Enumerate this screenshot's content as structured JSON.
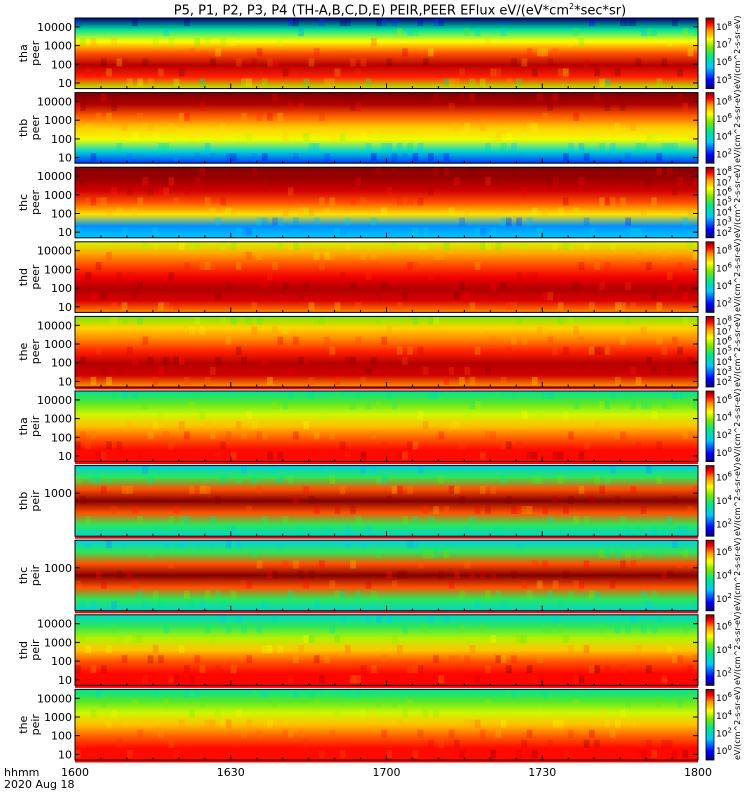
{
  "title": {
    "prefix": "P5, P1, P2, P3, P4 (TH-A,B,C,D,E) PEIR,PEER EFlux eV/(eV*cm",
    "sup": "2",
    "suffix": "*sec*sr)"
  },
  "footer": {
    "time_label": "hhmm",
    "date_label": "2020 Aug 18"
  },
  "colors": {
    "low": "#00007f",
    "high": "#7f0000",
    "gap": "#ff0000"
  },
  "chart_data": {
    "type": "heatmap",
    "title": "P5, P1, P2, P3, P4 (TH-A,B,C,D,E) PEIR,PEER EFlux eV/(eV*cm2*sec*sr)",
    "x": {
      "label": "hhmm",
      "ticks": [
        "1600",
        "1630",
        "1700",
        "1730",
        "1800"
      ],
      "range": [
        "16:00",
        "18:00"
      ]
    },
    "y_scale": "log",
    "colorbar_scale": "log",
    "panels": [
      {
        "probe": "tha",
        "instrument": "peer",
        "yticks": [
          "10",
          "100",
          "1000",
          "10000"
        ],
        "yrange": [
          5,
          30000
        ],
        "cbar_ticks": [
          "10^5",
          "10^6",
          "10^7",
          "10^8"
        ],
        "cbar_range": [
          5,
          8
        ],
        "cbar_label": "eV/(cm^2-s-sr-eV)",
        "profile": [
          5.0,
          6.3,
          7.1,
          7.6,
          7.9,
          7.7,
          6.9
        ]
      },
      {
        "probe": "thb",
        "instrument": "peer",
        "yticks": [
          "10",
          "100",
          "1000",
          "10000"
        ],
        "yrange": [
          5,
          30000
        ],
        "cbar_ticks": [
          "10^2",
          "10^4",
          "10^6",
          "10^8"
        ],
        "cbar_range": [
          1,
          8
        ],
        "cbar_label": "eV/(cm^2-s-sr-eV)",
        "profile": [
          8.0,
          7.8,
          7.0,
          6.3,
          5.8,
          3.5,
          2.2
        ]
      },
      {
        "probe": "thc",
        "instrument": "peer",
        "yticks": [
          "10",
          "100",
          "1000",
          "10000"
        ],
        "yrange": [
          5,
          30000
        ],
        "cbar_ticks": [
          "10^2",
          "10^3",
          "10^4",
          "10^5",
          "10^6",
          "10^7",
          "10^8"
        ],
        "cbar_range": [
          2,
          8
        ],
        "cbar_label": "eV/(cm^2-s-sr-eV)",
        "profile": [
          8.0,
          7.9,
          7.7,
          7.2,
          6.4,
          3.5,
          3.8
        ]
      },
      {
        "probe": "thd",
        "instrument": "peer",
        "yticks": [
          "10",
          "100",
          "1000",
          "10000"
        ],
        "yrange": [
          5,
          30000
        ],
        "cbar_ticks": [
          "10^2",
          "10^4",
          "10^6",
          "10^8"
        ],
        "cbar_range": [
          1,
          8
        ],
        "cbar_label": "eV/(cm^2-s-sr-eV)",
        "profile": [
          5.6,
          6.6,
          7.1,
          7.5,
          7.8,
          7.6,
          6.8
        ]
      },
      {
        "probe": "the",
        "instrument": "peer",
        "yticks": [
          "10",
          "100",
          "1000",
          "10000"
        ],
        "yrange": [
          5,
          30000
        ],
        "cbar_ticks": [
          "10^2",
          "10^3",
          "10^4",
          "10^5",
          "10^6",
          "10^7",
          "10^8"
        ],
        "cbar_range": [
          2,
          8
        ],
        "cbar_label": "eV/(cm^2-s-sr-eV)",
        "profile": [
          5.5,
          6.5,
          7.0,
          7.4,
          7.8,
          7.7,
          6.9
        ]
      },
      {
        "probe": "tha",
        "instrument": "peir",
        "yticks": [
          "10",
          "100",
          "1000",
          "10000"
        ],
        "yrange": [
          5,
          30000
        ],
        "cbar_ticks": [
          "10^0",
          "10^2",
          "10^4",
          "10^6"
        ],
        "cbar_range": [
          0,
          7
        ],
        "cbar_label": "eV/(cm^2-s-sr-eV)",
        "profile": [
          3.0,
          3.8,
          4.6,
          5.4,
          6.0,
          6.4,
          6.4
        ]
      },
      {
        "probe": "thb",
        "instrument": "peir",
        "yticks": [
          "1000"
        ],
        "yrange": [
          5,
          30000
        ],
        "cbar_ticks": [
          "10^2",
          "10^4",
          "10^6"
        ],
        "cbar_range": [
          1,
          7
        ],
        "cbar_label": "eV/(cm^2-s-sr-eV)",
        "profile": [
          3.0,
          4.0,
          6.2,
          7.0,
          6.2,
          4.0,
          3.2
        ]
      },
      {
        "probe": "thc",
        "instrument": "peir",
        "yticks": [
          "1000"
        ],
        "yrange": [
          5,
          30000
        ],
        "cbar_ticks": [
          "10^2",
          "10^4",
          "10^6"
        ],
        "cbar_range": [
          1,
          7
        ],
        "cbar_label": "eV/(cm^2-s-sr-eV)",
        "profile": [
          3.0,
          4.0,
          6.2,
          7.0,
          6.2,
          4.0,
          3.2
        ]
      },
      {
        "probe": "thd",
        "instrument": "peir",
        "yticks": [
          "10",
          "100",
          "1000",
          "10000"
        ],
        "yrange": [
          5,
          30000
        ],
        "cbar_ticks": [
          "10^2",
          "10^4",
          "10^6"
        ],
        "cbar_range": [
          1,
          7
        ],
        "cbar_label": "eV/(cm^2-s-sr-eV)",
        "profile": [
          3.2,
          4.0,
          4.8,
          5.6,
          6.2,
          6.5,
          6.5
        ]
      },
      {
        "probe": "the",
        "instrument": "peir",
        "yticks": [
          "10",
          "100",
          "1000",
          "10000"
        ],
        "yrange": [
          5,
          30000
        ],
        "cbar_ticks": [
          "10^0",
          "10^2",
          "10^4",
          "10^6"
        ],
        "cbar_range": [
          0,
          7
        ],
        "cbar_label": "eV/(cm^2-s-sr-eV)",
        "profile": [
          3.0,
          3.8,
          4.6,
          5.4,
          6.0,
          6.4,
          6.4
        ]
      }
    ]
  }
}
